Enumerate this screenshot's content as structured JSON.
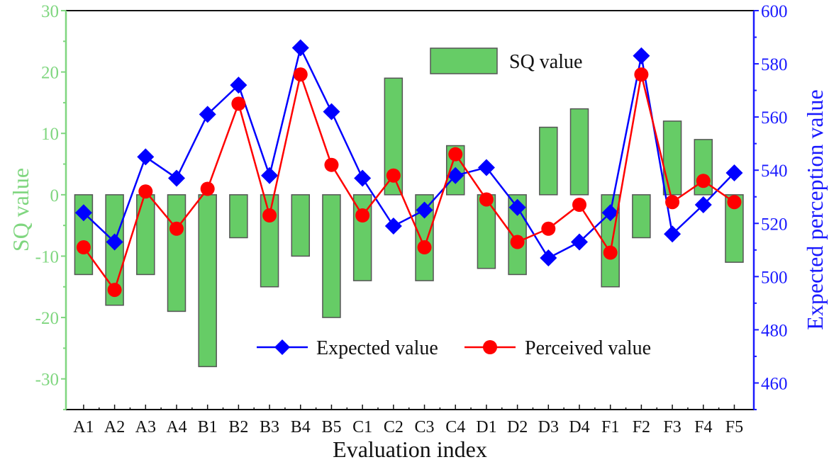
{
  "chart_data": {
    "type": "bar+line",
    "xlabel": "Evaluation index",
    "ylabel_left": "SQ value",
    "ylabel_right": "Expected perception value",
    "categories": [
      "A1",
      "A2",
      "A3",
      "A4",
      "B1",
      "B2",
      "B3",
      "B4",
      "B5",
      "C1",
      "C2",
      "C3",
      "C4",
      "D1",
      "D2",
      "D3",
      "D4",
      "F1",
      "F2",
      "F3",
      "F4",
      "F5"
    ],
    "ylim_left": [
      -35,
      30
    ],
    "yticks_left": [
      30,
      20,
      10,
      0,
      -10,
      -20,
      -30
    ],
    "ylim_right": [
      450,
      600
    ],
    "yticks_right": [
      600,
      580,
      560,
      540,
      520,
      500,
      480,
      460
    ],
    "grid": false,
    "legend_placement": "top-center and bottom-center",
    "bars": {
      "name": "SQ value",
      "axis": "left",
      "color": "#66cc66",
      "values": [
        -13,
        -18,
        -13,
        -19,
        -28,
        -7,
        -15,
        -10,
        -20,
        -14,
        19,
        -14,
        8,
        -12,
        -13,
        11,
        14,
        -15,
        -7,
        12,
        9,
        -11
      ]
    },
    "series": [
      {
        "name": "Expected value",
        "axis": "right",
        "color": "#0000ff",
        "marker": "diamond",
        "values": [
          524,
          513,
          545,
          537,
          561,
          572,
          538,
          586,
          562,
          537,
          519,
          525,
          538,
          541,
          526,
          507,
          513,
          524,
          583,
          516,
          527,
          539
        ]
      },
      {
        "name": "Perceived value",
        "axis": "right",
        "color": "#ff0000",
        "marker": "circle",
        "values": [
          511,
          495,
          532,
          518,
          533,
          565,
          523,
          576,
          542,
          523,
          538,
          511,
          546,
          529,
          513,
          518,
          527,
          509,
          576,
          528,
          536,
          528
        ]
      }
    ],
    "axis_colors": {
      "left": "#7fd67f",
      "right": "#1a1aff"
    }
  }
}
